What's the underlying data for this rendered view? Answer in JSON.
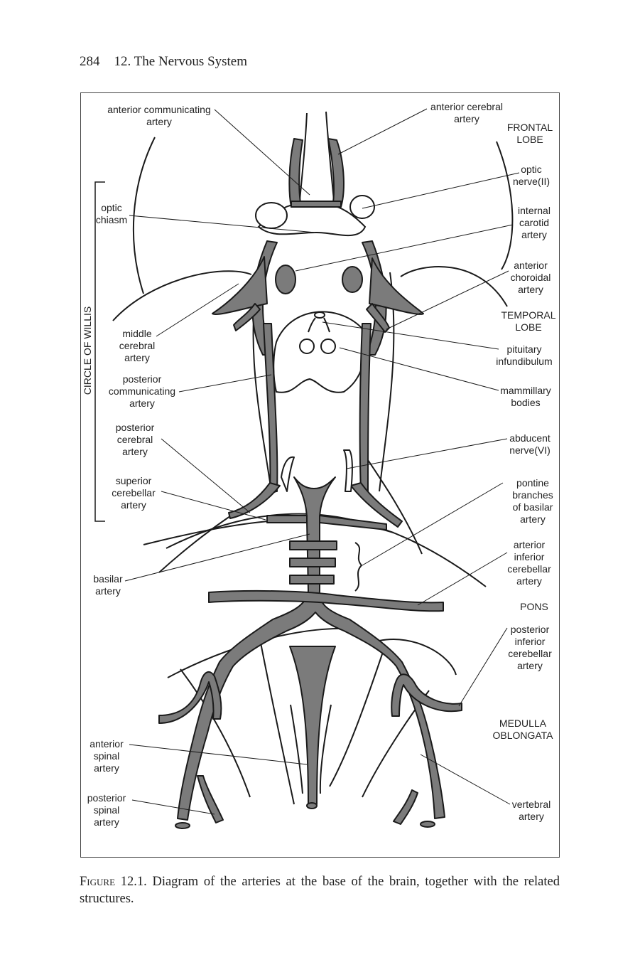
{
  "page": {
    "number": "284",
    "chapter": "12. The Nervous System"
  },
  "labels": {
    "ant_comm_1": "anterior communicating",
    "ant_comm_2": "artery",
    "ant_cer_1": "anterior cerebral",
    "ant_cer_2": "artery",
    "frontal_1": "FRONTAL",
    "frontal_2": "LOBE",
    "optic_nerve_1": "optic",
    "optic_nerve_2": "nerve(II)",
    "optic_chiasm_1": "optic",
    "optic_chiasm_2": "chiasm",
    "int_car_1": "internal",
    "int_car_2": "carotid",
    "int_car_3": "artery",
    "ant_chor_1": "anterior",
    "ant_chor_2": "choroidal",
    "ant_chor_3": "artery",
    "circle_willis": "CIRCLE OF WILLIS",
    "temporal_1": "TEMPORAL",
    "temporal_2": "LOBE",
    "mid_cer_1": "middle",
    "mid_cer_2": "cerebral",
    "mid_cer_3": "artery",
    "pituitary_1": "pituitary",
    "pituitary_2": "infundibulum",
    "post_comm_1": "posterior",
    "post_comm_2": "communicating",
    "post_comm_3": "artery",
    "mammillary_1": "mammillary",
    "mammillary_2": "bodies",
    "post_cer_1": "posterior",
    "post_cer_2": "cerebral",
    "post_cer_3": "artery",
    "abducent_1": "abducent",
    "abducent_2": "nerve(VI)",
    "sup_cereb_1": "superior",
    "sup_cereb_2": "cerebellar",
    "sup_cereb_3": "artery",
    "pontine_1": "pontine",
    "pontine_2": "branches",
    "pontine_3": "of basilar",
    "pontine_4": "artery",
    "ant_inf_1": "arterior",
    "ant_inf_2": "inferior",
    "ant_inf_3": "cerebellar",
    "ant_inf_4": "artery",
    "basilar_1": "basilar",
    "basilar_2": "artery",
    "pons": "PONS",
    "post_inf_1": "posterior",
    "post_inf_2": "inferior",
    "post_inf_3": "cerebellar",
    "post_inf_4": "artery",
    "medulla_1": "MEDULLA",
    "medulla_2": "OBLONGATA",
    "ant_spinal_1": "anterior",
    "ant_spinal_2": "spinal",
    "ant_spinal_3": "artery",
    "post_spinal_1": "posterior",
    "post_spinal_2": "spinal",
    "post_spinal_3": "artery",
    "vertebral_1": "vertebral",
    "vertebral_2": "artery"
  },
  "caption": {
    "label": "Figure 12.1.",
    "text": " Diagram of the arteries at the base of the brain, together with the related structures."
  },
  "colors": {
    "artery_fill": "#7b7b7b",
    "outline": "#1a1a1a"
  }
}
